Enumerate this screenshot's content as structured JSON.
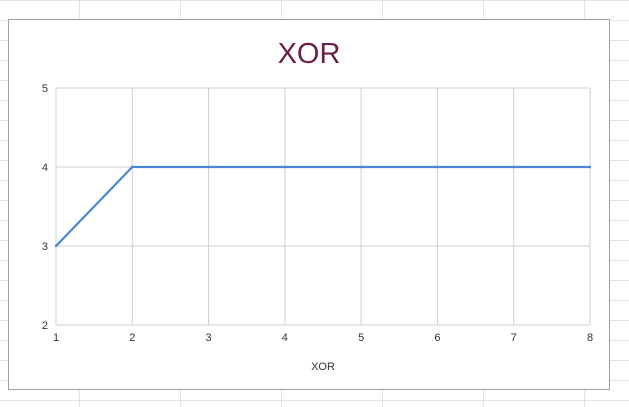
{
  "chart_data": {
    "type": "line",
    "title": "XOR",
    "xlabel": "XOR",
    "ylabel": "",
    "x": [
      1,
      2,
      3,
      4,
      5,
      6,
      7,
      8
    ],
    "series": [
      {
        "values": [
          3,
          4,
          4,
          4,
          4,
          4,
          4,
          4
        ],
        "color": "#4a86d1"
      }
    ],
    "xlim": [
      1,
      8
    ],
    "ylim": [
      2,
      5
    ],
    "x_ticks": [
      1,
      2,
      3,
      4,
      5,
      6,
      7,
      8
    ],
    "y_ticks": [
      2,
      3,
      4,
      5
    ],
    "grid": true,
    "legend": "none",
    "colors": {
      "title": "#6b1f48",
      "gridline": "#d0d0d0",
      "line": "#4a86d1"
    }
  }
}
